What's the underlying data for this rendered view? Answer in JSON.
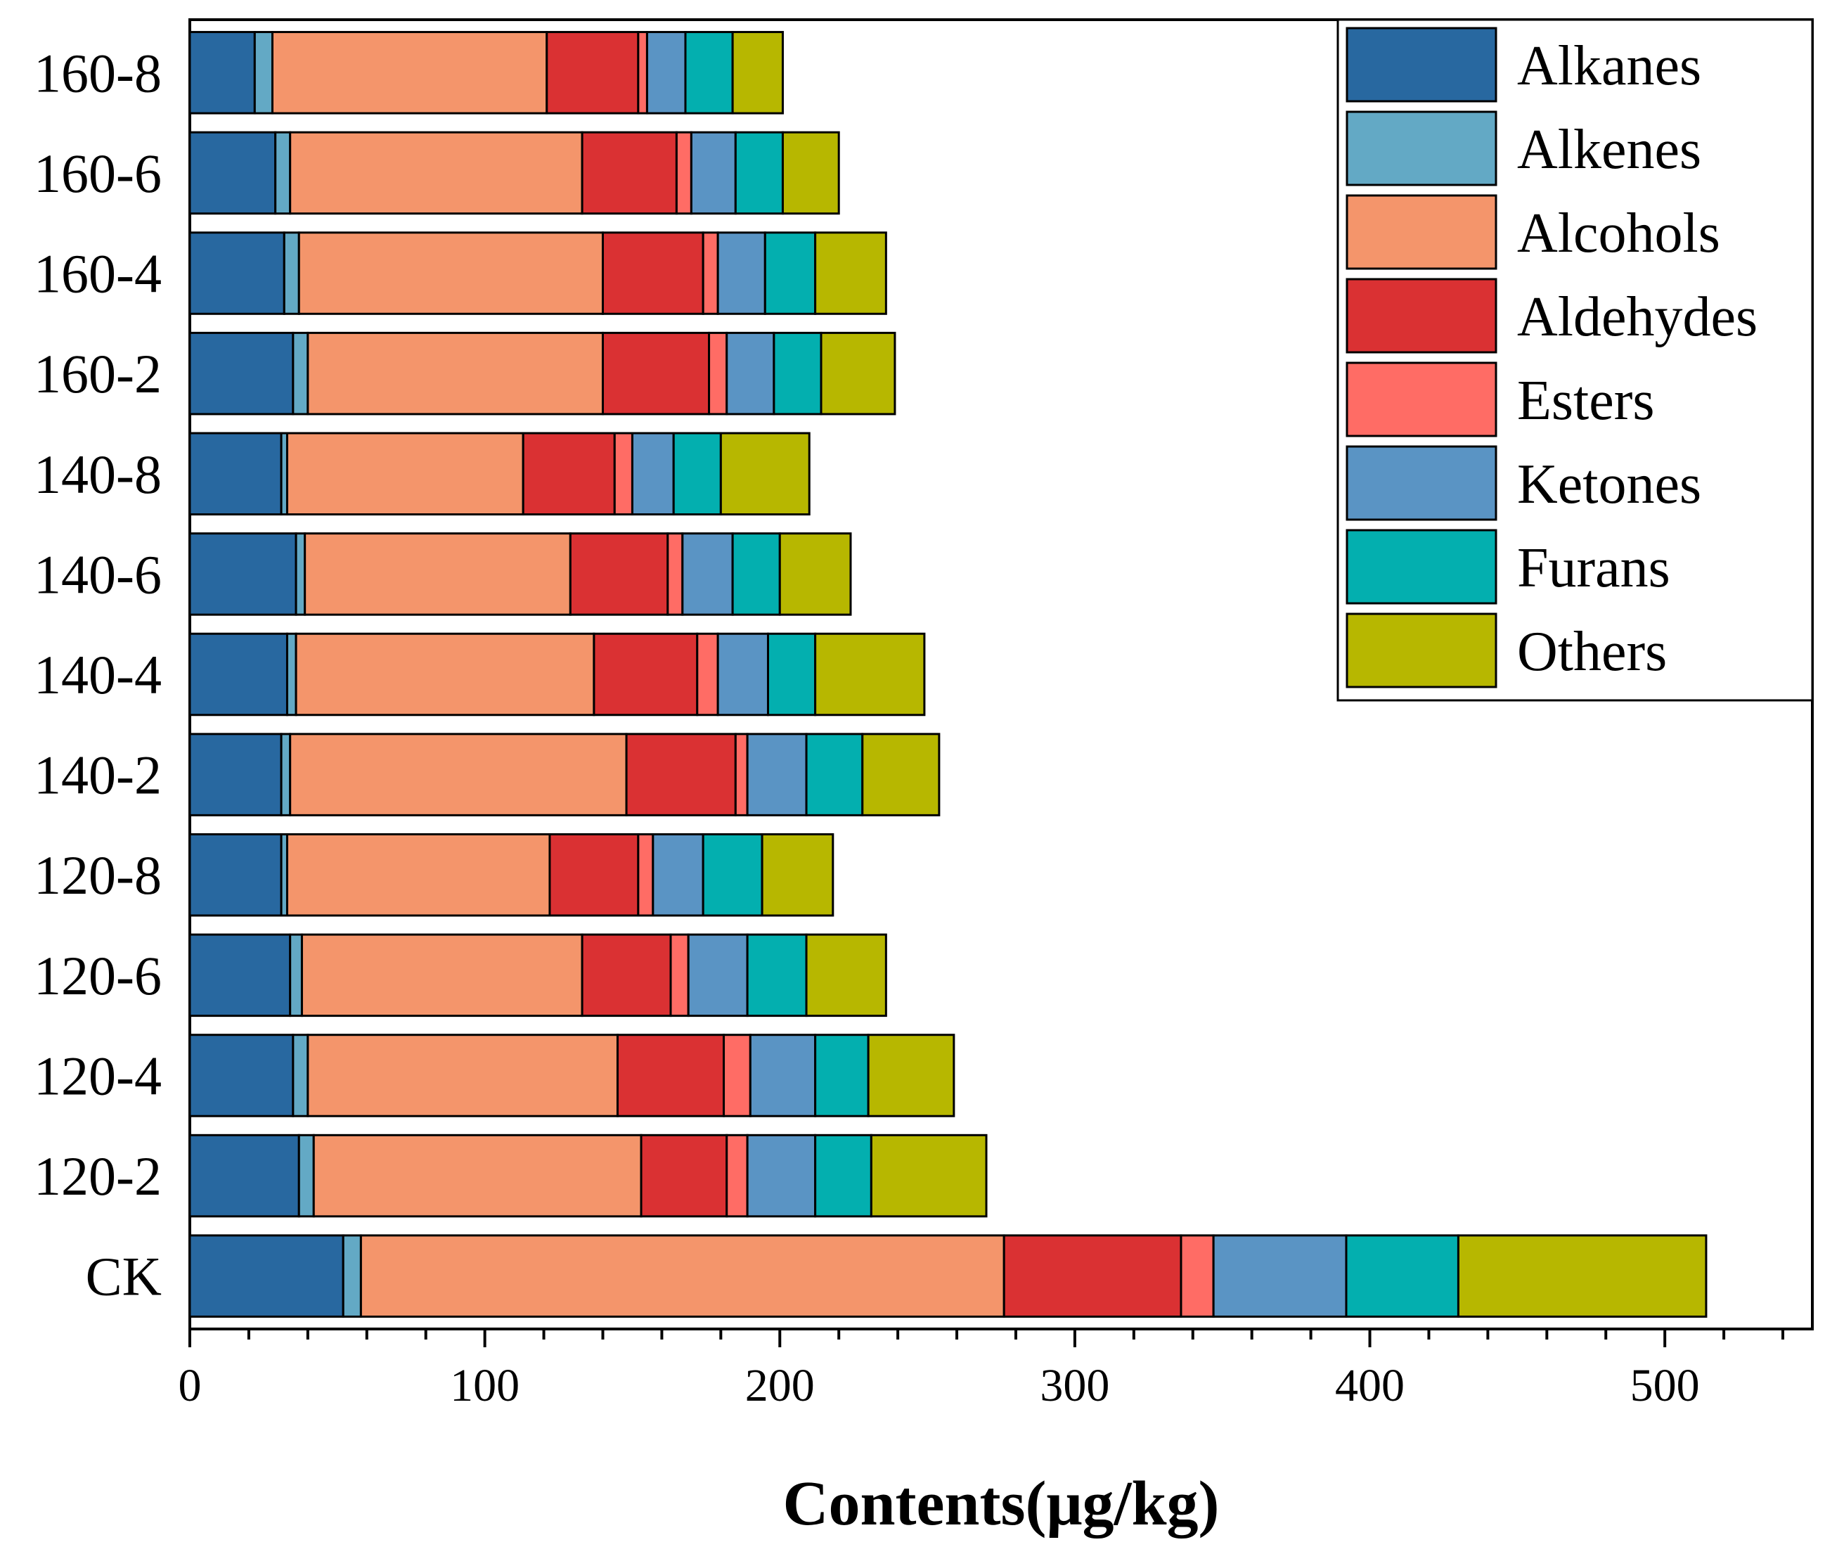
{
  "chart_data": {
    "type": "stacked-bar-horizontal",
    "xlabel": "Contents(μg/kg)",
    "ylabel": "",
    "title": "",
    "xlim": [
      0,
      550
    ],
    "xticks": [
      0,
      100,
      200,
      300,
      400,
      500
    ],
    "legend_position": "top-right",
    "categories": [
      "160-8",
      "160-6",
      "160-4",
      "160-2",
      "140-8",
      "140-6",
      "140-4",
      "140-2",
      "120-8",
      "120-6",
      "120-4",
      "120-2",
      "CK"
    ],
    "series": [
      {
        "name": "Alkanes",
        "color": "#2868A0",
        "values": [
          22,
          29,
          32,
          35,
          31,
          36,
          33,
          31,
          31,
          34,
          35,
          37,
          52
        ]
      },
      {
        "name": "Alkenes",
        "color": "#63A9C5",
        "values": [
          6,
          5,
          5,
          5,
          2,
          3,
          3,
          3,
          2,
          4,
          5,
          5,
          6
        ]
      },
      {
        "name": "Alcohols",
        "color": "#F4956B",
        "values": [
          93,
          99,
          103,
          100,
          80,
          90,
          101,
          114,
          89,
          95,
          105,
          111,
          218
        ]
      },
      {
        "name": "Aldehydes",
        "color": "#DA3133",
        "values": [
          31,
          32,
          34,
          36,
          31,
          33,
          35,
          37,
          30,
          30,
          36,
          29,
          60
        ]
      },
      {
        "name": "Esters",
        "color": "#FF6C65",
        "values": [
          3,
          5,
          5,
          6,
          6,
          5,
          7,
          4,
          5,
          6,
          9,
          7,
          11
        ]
      },
      {
        "name": "Ketones",
        "color": "#5A94C4",
        "values": [
          13,
          15,
          16,
          16,
          14,
          17,
          17,
          20,
          17,
          20,
          22,
          23,
          45
        ]
      },
      {
        "name": "Furans",
        "color": "#03AFAF",
        "values": [
          16,
          16,
          17,
          16,
          16,
          16,
          16,
          19,
          20,
          20,
          18,
          19,
          38
        ]
      },
      {
        "name": "Others",
        "color": "#B7B700",
        "values": [
          17,
          19,
          24,
          25,
          30,
          24,
          37,
          26,
          24,
          27,
          29,
          39,
          84
        ]
      }
    ]
  }
}
